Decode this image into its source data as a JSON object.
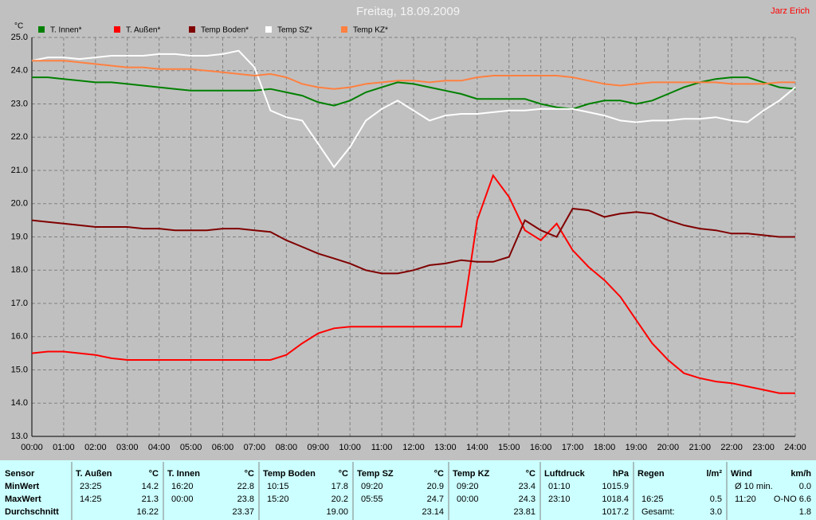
{
  "chart_data": {
    "type": "line",
    "title": "Freitag, 18.09.2009",
    "author": "Jarz Erich",
    "y_unit": "°C",
    "x": [
      0,
      0.5,
      1,
      1.5,
      2,
      2.5,
      3,
      3.5,
      4,
      4.5,
      5,
      5.5,
      6,
      6.5,
      7,
      7.5,
      8,
      8.5,
      9,
      9.5,
      10,
      10.5,
      11,
      11.5,
      12,
      12.5,
      13,
      13.5,
      14,
      14.5,
      15,
      15.5,
      16,
      16.5,
      17,
      17.5,
      18,
      18.5,
      19,
      19.5,
      20,
      20.5,
      21,
      21.5,
      22,
      22.5,
      23,
      23.5,
      24
    ],
    "series": [
      {
        "name": "T. Innen*",
        "color": "#008000",
        "values": [
          23.8,
          23.8,
          23.75,
          23.7,
          23.65,
          23.65,
          23.6,
          23.55,
          23.5,
          23.45,
          23.4,
          23.4,
          23.4,
          23.4,
          23.4,
          23.45,
          23.35,
          23.25,
          23.05,
          22.95,
          23.1,
          23.35,
          23.5,
          23.65,
          23.6,
          23.5,
          23.4,
          23.3,
          23.15,
          23.15,
          23.15,
          23.15,
          23.0,
          22.9,
          22.85,
          23.0,
          23.1,
          23.1,
          23.0,
          23.1,
          23.3,
          23.5,
          23.65,
          23.75,
          23.8,
          23.8,
          23.65,
          23.5,
          23.45
        ]
      },
      {
        "name": "T. Außen*",
        "color": "#ff0000",
        "values": [
          15.5,
          15.55,
          15.55,
          15.5,
          15.45,
          15.35,
          15.3,
          15.3,
          15.3,
          15.3,
          15.3,
          15.3,
          15.3,
          15.3,
          15.3,
          15.3,
          15.45,
          15.8,
          16.1,
          16.25,
          16.3,
          16.3,
          16.3,
          16.3,
          16.3,
          16.3,
          16.3,
          16.3,
          19.5,
          20.85,
          20.2,
          19.2,
          18.9,
          19.4,
          18.6,
          18.1,
          17.7,
          17.2,
          16.5,
          15.8,
          15.3,
          14.9,
          14.75,
          14.65,
          14.6,
          14.5,
          14.4,
          14.3,
          14.3
        ]
      },
      {
        "name": "Temp Boden*",
        "color": "#800000",
        "values": [
          19.5,
          19.45,
          19.4,
          19.35,
          19.3,
          19.3,
          19.3,
          19.25,
          19.25,
          19.2,
          19.2,
          19.2,
          19.25,
          19.25,
          19.2,
          19.15,
          18.9,
          18.7,
          18.5,
          18.35,
          18.2,
          18.0,
          17.9,
          17.9,
          18.0,
          18.15,
          18.2,
          18.3,
          18.25,
          18.25,
          18.4,
          19.5,
          19.2,
          19.0,
          19.85,
          19.8,
          19.6,
          19.7,
          19.75,
          19.7,
          19.5,
          19.35,
          19.25,
          19.2,
          19.1,
          19.1,
          19.05,
          19.0,
          19.0
        ]
      },
      {
        "name": "Temp SZ*",
        "color": "#ffffff",
        "values": [
          24.3,
          24.4,
          24.4,
          24.35,
          24.4,
          24.45,
          24.45,
          24.45,
          24.5,
          24.5,
          24.45,
          24.45,
          24.5,
          24.6,
          24.1,
          22.8,
          22.6,
          22.5,
          21.8,
          21.1,
          21.7,
          22.5,
          22.85,
          23.1,
          22.8,
          22.5,
          22.65,
          22.7,
          22.7,
          22.75,
          22.8,
          22.8,
          22.85,
          22.85,
          22.85,
          22.75,
          22.65,
          22.5,
          22.45,
          22.5,
          22.5,
          22.55,
          22.55,
          22.6,
          22.5,
          22.45,
          22.8,
          23.1,
          23.5
        ]
      },
      {
        "name": "Temp KZ*",
        "color": "#ff8040",
        "values": [
          24.3,
          24.3,
          24.3,
          24.25,
          24.2,
          24.15,
          24.1,
          24.1,
          24.05,
          24.05,
          24.05,
          24.0,
          23.95,
          23.9,
          23.85,
          23.9,
          23.8,
          23.6,
          23.5,
          23.45,
          23.5,
          23.6,
          23.65,
          23.7,
          23.7,
          23.65,
          23.7,
          23.7,
          23.8,
          23.85,
          23.85,
          23.85,
          23.85,
          23.85,
          23.8,
          23.7,
          23.6,
          23.55,
          23.6,
          23.65,
          23.65,
          23.65,
          23.65,
          23.65,
          23.6,
          23.6,
          23.6,
          23.65,
          23.65
        ]
      }
    ],
    "xlim": [
      0,
      24
    ],
    "xticks": [
      {
        "value": 0,
        "label": "00:00"
      },
      {
        "value": 1,
        "label": "01:00"
      },
      {
        "value": 2,
        "label": "02:00"
      },
      {
        "value": 3,
        "label": "03:00"
      },
      {
        "value": 4,
        "label": "04:00"
      },
      {
        "value": 5,
        "label": "05:00"
      },
      {
        "value": 6,
        "label": "06:00"
      },
      {
        "value": 7,
        "label": "07:00"
      },
      {
        "value": 8,
        "label": "08:00"
      },
      {
        "value": 9,
        "label": "09:00"
      },
      {
        "value": 10,
        "label": "10:00"
      },
      {
        "value": 11,
        "label": "11:00"
      },
      {
        "value": 12,
        "label": "12:00"
      },
      {
        "value": 13,
        "label": "13:00"
      },
      {
        "value": 14,
        "label": "14:00"
      },
      {
        "value": 15,
        "label": "15:00"
      },
      {
        "value": 16,
        "label": "16:00"
      },
      {
        "value": 17,
        "label": "17:00"
      },
      {
        "value": 18,
        "label": "18:00"
      },
      {
        "value": 19,
        "label": "19:00"
      },
      {
        "value": 20,
        "label": "20:00"
      },
      {
        "value": 21,
        "label": "21:00"
      },
      {
        "value": 22,
        "label": "22:00"
      },
      {
        "value": 23,
        "label": "23:00"
      },
      {
        "value": 24,
        "label": "24:00"
      }
    ],
    "ylim": [
      13,
      25
    ],
    "yticks": [
      {
        "value": 13,
        "label": "13.0"
      },
      {
        "value": 14,
        "label": "14.0"
      },
      {
        "value": 15,
        "label": "15.0"
      },
      {
        "value": 16,
        "label": "16.0"
      },
      {
        "value": 17,
        "label": "17.0"
      },
      {
        "value": 18,
        "label": "18.0"
      },
      {
        "value": 19,
        "label": "19.0"
      },
      {
        "value": 20,
        "label": "20.0"
      },
      {
        "value": 21,
        "label": "21.0"
      },
      {
        "value": 22,
        "label": "22.0"
      },
      {
        "value": 23,
        "label": "23.0"
      },
      {
        "value": 24,
        "label": "24.0"
      },
      {
        "value": 25,
        "label": "25.0"
      }
    ],
    "grid": true
  },
  "table": {
    "row_labels": {
      "header": "Sensor",
      "min": "MinWert",
      "max": "MaxWert",
      "avg": "Durchschnitt"
    },
    "columns": [
      {
        "name": "T. Außen",
        "unit": "°C",
        "min": {
          "time": "23:25",
          "value": "14.2"
        },
        "max": {
          "time": "14:25",
          "value": "21.3"
        },
        "avg": {
          "value": "16.22"
        }
      },
      {
        "name": "T. Innen",
        "unit": "°C",
        "min": {
          "time": "16:20",
          "value": "22.8"
        },
        "max": {
          "time": "00:00",
          "value": "23.8"
        },
        "avg": {
          "value": "23.37"
        }
      },
      {
        "name": "Temp Boden",
        "unit": "°C",
        "min": {
          "time": "10:15",
          "value": "17.8"
        },
        "max": {
          "time": "15:20",
          "value": "20.2"
        },
        "avg": {
          "value": "19.00"
        }
      },
      {
        "name": "Temp SZ",
        "unit": "°C",
        "min": {
          "time": "09:20",
          "value": "20.9"
        },
        "max": {
          "time": "05:55",
          "value": "24.7"
        },
        "avg": {
          "value": "23.14"
        }
      },
      {
        "name": "Temp KZ",
        "unit": "°C",
        "min": {
          "time": "09:20",
          "value": "23.4"
        },
        "max": {
          "time": "00:00",
          "value": "24.3"
        },
        "avg": {
          "value": "23.81"
        }
      },
      {
        "name": "Luftdruck",
        "unit": "hPa",
        "min": {
          "time": "01:10",
          "value": "1015.9"
        },
        "max": {
          "time": "23:10",
          "value": "1018.4"
        },
        "avg": {
          "value": "1017.2"
        }
      },
      {
        "name": "Regen",
        "unit": "l/m²",
        "max": {
          "time": "16:25",
          "value": "0.5"
        },
        "avg": {
          "time": "Gesamt:",
          "value": "3.0"
        }
      },
      {
        "name": "Wind",
        "unit": "km/h",
        "min": {
          "time": "Ø 10 min.",
          "value": "0.0"
        },
        "max": {
          "time": "11:20",
          "value": "O-NO 6.6"
        },
        "avg": {
          "value": "1.8"
        }
      }
    ]
  }
}
